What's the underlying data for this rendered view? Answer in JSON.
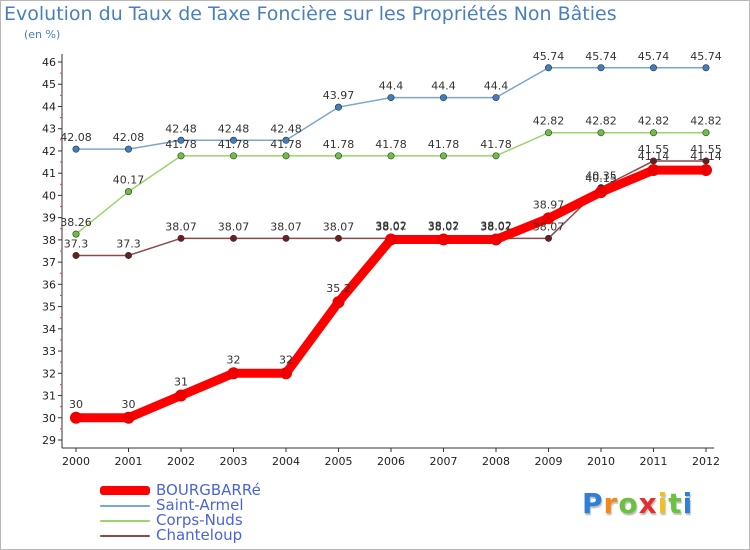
{
  "chart_data": {
    "type": "line",
    "title": "Evolution du Taux de Taxe Foncière sur les Propriétés Non Bâties",
    "ylabel": "(en %)",
    "xlabel": "",
    "x": [
      "2000",
      "2001",
      "2002",
      "2003",
      "2004",
      "2005",
      "2006",
      "2007",
      "2008",
      "2009",
      "2010",
      "2011",
      "2012"
    ],
    "yticks": [
      "29",
      "30",
      "31",
      "32",
      "33",
      "34",
      "35",
      "36",
      "37",
      "38",
      "39",
      "40",
      "41",
      "42",
      "43",
      "44",
      "45",
      "46"
    ],
    "ylim": [
      29,
      46
    ],
    "grid": false,
    "legend_position": "bottom-left",
    "series": [
      {
        "name": "Saint-Armel",
        "color": "#7aa6cf",
        "point_color": "#3f7fbf",
        "values": [
          42.08,
          42.08,
          42.48,
          42.48,
          42.48,
          43.97,
          44.4,
          44.4,
          44.4,
          45.74,
          45.74,
          45.74,
          45.74
        ],
        "labels": [
          "42.08",
          "42.08",
          "42.48",
          "42.48",
          "42.48",
          "43.97",
          "44.4",
          "44.4",
          "44.4",
          "45.74",
          "45.74",
          "45.74",
          "45.74"
        ]
      },
      {
        "name": "Corps-Nuds",
        "color": "#9bd46a",
        "point_color": "#6cc040",
        "values": [
          38.26,
          40.17,
          41.78,
          41.78,
          41.78,
          41.78,
          41.78,
          41.78,
          41.78,
          42.82,
          42.82,
          42.82,
          42.82
        ],
        "labels": [
          "38.26",
          "40.17",
          "41.78",
          "41.78",
          "41.78",
          "41.78",
          "41.78",
          "41.78",
          "41.78",
          "42.82",
          "42.82",
          "42.82",
          "42.82"
        ]
      },
      {
        "name": "Chanteloup",
        "color": "#8a4a4a",
        "point_color": "#6a1f1f",
        "values": [
          37.3,
          37.3,
          38.07,
          38.07,
          38.07,
          38.07,
          38.07,
          38.07,
          38.07,
          38.07,
          40.35,
          41.55,
          41.55
        ],
        "labels": [
          "37.3",
          "37.3",
          "38.07",
          "38.07",
          "38.07",
          "38.07",
          "38.07",
          "38.07",
          "38.07",
          "38.07",
          "40.35",
          "41.55",
          "41.55"
        ]
      },
      {
        "name": "BOURGBARRé",
        "color": "#ff0000",
        "point_color": "#ee0000",
        "values": [
          30,
          30,
          31,
          32,
          32,
          35.2,
          38.02,
          38.02,
          38.02,
          38.97,
          40.15,
          41.14,
          41.14
        ],
        "labels": [
          "30",
          "30",
          "31",
          "32",
          "32",
          "35.2",
          "38.02",
          "38.02",
          "38.02",
          "38.97",
          "40.15",
          "41.14",
          "41.14"
        ]
      }
    ],
    "legend": [
      "BOURGBARRé",
      "Saint-Armel",
      "Corps-Nuds",
      "Chanteloup"
    ]
  },
  "logo": {
    "letters": [
      "P",
      "r",
      "o",
      "x",
      "i",
      "t",
      "i"
    ],
    "colors": [
      "#2f7fd6",
      "#f08a1c",
      "#6cc040",
      "#e03030",
      "#f0c020",
      "#6cc040",
      "#2f7fd6"
    ]
  }
}
